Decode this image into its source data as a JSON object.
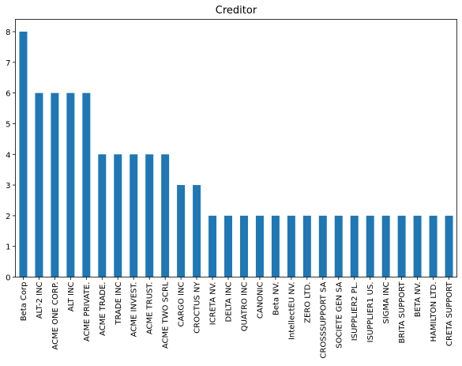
{
  "chart_data": {
    "type": "bar",
    "title": "Creditor",
    "xlabel": "",
    "ylabel": "",
    "ylim": [
      0,
      8.4
    ],
    "yticks": [
      0,
      1,
      2,
      3,
      4,
      5,
      6,
      7,
      8
    ],
    "grid": false,
    "legend": "none",
    "bar_color": "#1f77b4",
    "categories": [
      "Beta Corp",
      "ALT-2 INC",
      "ACME ONE CORP.",
      "ALT INC",
      "ACME PRIVATE.",
      "ACME TRADE.",
      "TRADE INC",
      "ACME INVEST.",
      "ACME TRUST.",
      "ACME TWO SCRL",
      "CARGO INC",
      "CROCTUS NY",
      "ICRETA NV.",
      "DELTA INC",
      "QUATRO INC",
      "CANONIC",
      "Beta NV.",
      "IntellectEU NV.",
      "ZERO LTD.",
      "CROSSSUPPORT SA",
      "SOCIETE GEN SA",
      "ISUPPLIER2 PL.",
      "ISUPPLIER1 US.",
      "SIGMA INC",
      "BRITA SUPPORT",
      "BETA NV.",
      "HAMILTON LTD.",
      "CRETA SUPPORT"
    ],
    "values": [
      8,
      6,
      6,
      6,
      6,
      4,
      4,
      4,
      4,
      4,
      3,
      3,
      2,
      2,
      2,
      2,
      2,
      2,
      2,
      2,
      2,
      2,
      2,
      2,
      2,
      2,
      2,
      2
    ]
  }
}
